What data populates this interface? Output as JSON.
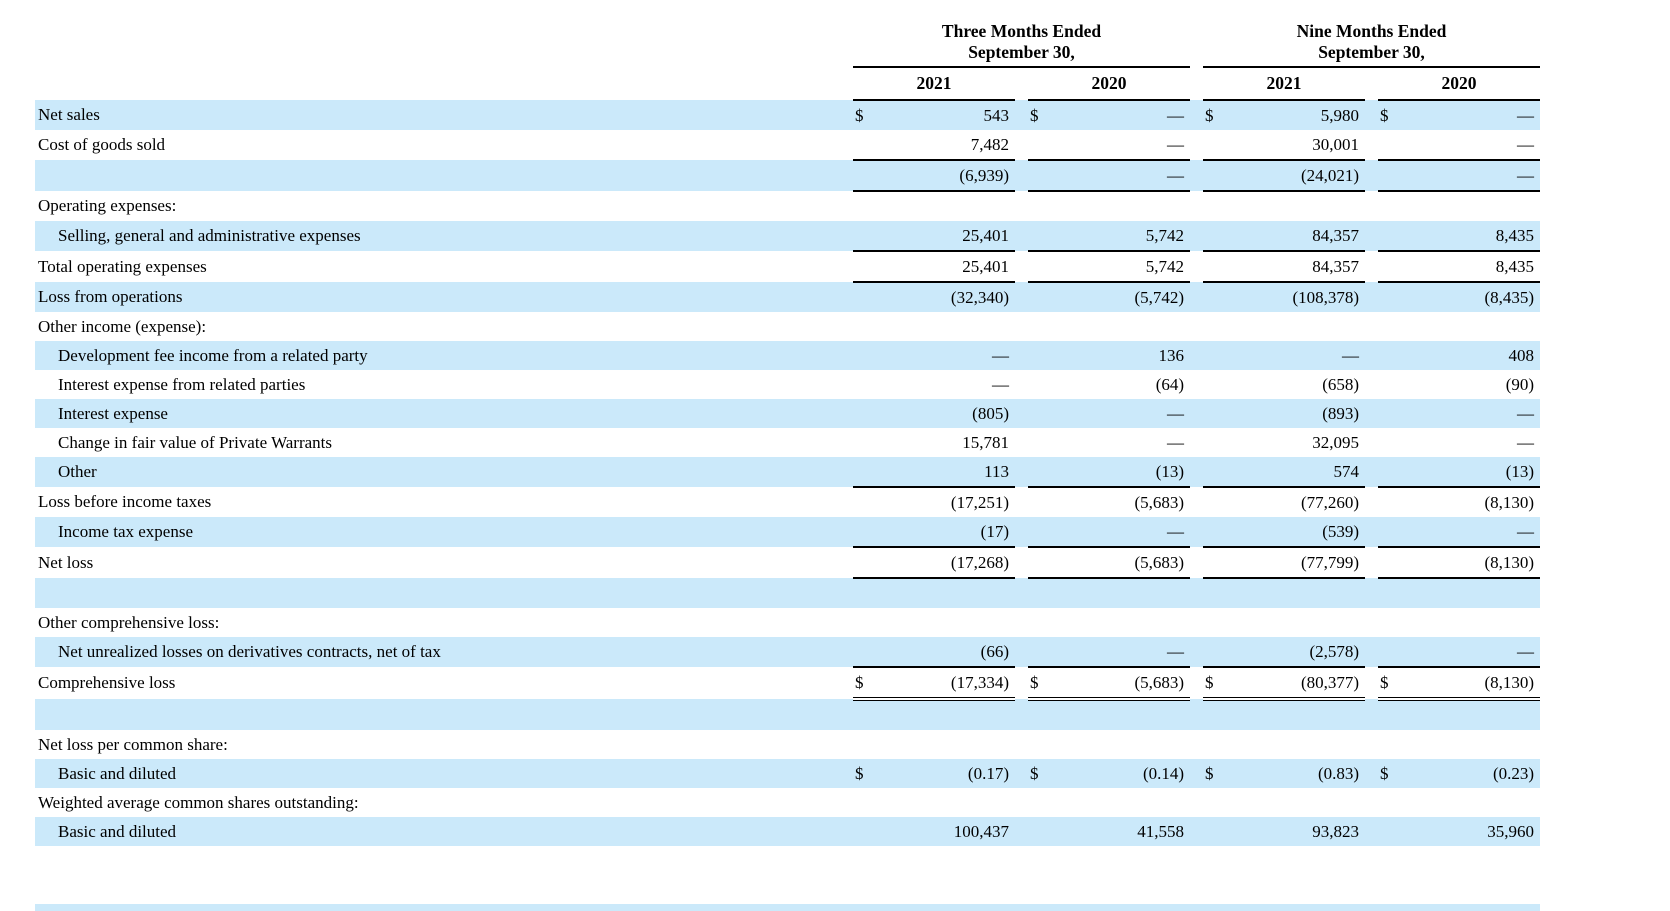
{
  "colors": {
    "row_highlight": "#cbe9fa",
    "rule": "#000000",
    "text": "#000000",
    "background": "#ffffff"
  },
  "table": {
    "currency_symbol": "$",
    "header": {
      "groups": [
        {
          "line1": "Three Months Ended",
          "line2": "September 30,"
        },
        {
          "line1": "Nine Months Ended",
          "line2": "September 30,"
        }
      ],
      "years": [
        "2021",
        "2020",
        "2021",
        "2020"
      ]
    },
    "rows": [
      {
        "label": "Net sales",
        "indent": 0,
        "blue": true,
        "dollar": true,
        "values": [
          "543",
          "—",
          "5,980",
          "—"
        ],
        "underline": null
      },
      {
        "label": "Cost of goods sold",
        "indent": 0,
        "blue": false,
        "dollar": false,
        "values": [
          "7,482",
          "—",
          "30,001",
          "—"
        ],
        "underline": "single"
      },
      {
        "label": "",
        "indent": 0,
        "blue": true,
        "dollar": false,
        "values": [
          "(6,939)",
          "—",
          "(24,021)",
          "—"
        ],
        "underline": "single"
      },
      {
        "label": "Operating expenses:",
        "indent": 0,
        "blue": false,
        "dollar": false,
        "values": null,
        "underline": null
      },
      {
        "label": "Selling, general and administrative expenses",
        "indent": 1,
        "blue": true,
        "dollar": false,
        "values": [
          "25,401",
          "5,742",
          "84,357",
          "8,435"
        ],
        "underline": "single"
      },
      {
        "label": "Total operating expenses",
        "indent": 0,
        "blue": false,
        "dollar": false,
        "values": [
          "25,401",
          "5,742",
          "84,357",
          "8,435"
        ],
        "underline": "single"
      },
      {
        "label": "Loss from operations",
        "indent": 0,
        "blue": true,
        "dollar": false,
        "values": [
          "(32,340)",
          "(5,742)",
          "(108,378)",
          "(8,435)"
        ],
        "underline": null
      },
      {
        "label": "Other income (expense):",
        "indent": 0,
        "blue": false,
        "dollar": false,
        "values": null,
        "underline": null
      },
      {
        "label": "Development fee income from a related party",
        "indent": 1,
        "blue": true,
        "dollar": false,
        "values": [
          "—",
          "136",
          "—",
          "408"
        ],
        "underline": null
      },
      {
        "label": "Interest expense from related parties",
        "indent": 1,
        "blue": false,
        "dollar": false,
        "values": [
          "—",
          "(64)",
          "(658)",
          "(90)"
        ],
        "underline": null
      },
      {
        "label": "Interest expense",
        "indent": 1,
        "blue": true,
        "dollar": false,
        "values": [
          "(805)",
          "—",
          "(893)",
          "—"
        ],
        "underline": null
      },
      {
        "label": "Change in fair value of Private Warrants",
        "indent": 1,
        "blue": false,
        "dollar": false,
        "values": [
          "15,781",
          "—",
          "32,095",
          "—"
        ],
        "underline": null
      },
      {
        "label": "Other",
        "indent": 1,
        "blue": true,
        "dollar": false,
        "values": [
          "113",
          "(13)",
          "574",
          "(13)"
        ],
        "underline": "single"
      },
      {
        "label": "Loss before income taxes",
        "indent": 0,
        "blue": false,
        "dollar": false,
        "values": [
          "(17,251)",
          "(5,683)",
          "(77,260)",
          "(8,130)"
        ],
        "underline": null
      },
      {
        "label": "Income tax expense",
        "indent": 1,
        "blue": true,
        "dollar": false,
        "values": [
          "(17)",
          "—",
          "(539)",
          "—"
        ],
        "underline": "single"
      },
      {
        "label": "Net loss",
        "indent": 0,
        "blue": false,
        "dollar": false,
        "values": [
          "(17,268)",
          "(5,683)",
          "(77,799)",
          "(8,130)"
        ],
        "underline": "single"
      },
      {
        "label": "",
        "indent": 0,
        "blue": true,
        "dollar": false,
        "values": null,
        "underline": null
      },
      {
        "label": "Other comprehensive loss:",
        "indent": 0,
        "blue": false,
        "dollar": false,
        "values": null,
        "underline": null
      },
      {
        "label": "Net unrealized losses on derivatives contracts, net of tax",
        "indent": 1,
        "blue": true,
        "dollar": false,
        "values": [
          "(66)",
          "—",
          "(2,578)",
          "—"
        ],
        "underline": "single"
      },
      {
        "label": "Comprehensive loss",
        "indent": 0,
        "blue": false,
        "dollar": true,
        "values": [
          "(17,334)",
          "(5,683)",
          "(80,377)",
          "(8,130)"
        ],
        "underline": "double"
      },
      {
        "label": "",
        "indent": 0,
        "blue": true,
        "dollar": false,
        "values": null,
        "underline": null
      },
      {
        "label": "Net loss per common share:",
        "indent": 0,
        "blue": false,
        "dollar": false,
        "values": null,
        "underline": null
      },
      {
        "label": "Basic and diluted",
        "indent": 1,
        "blue": true,
        "dollar": true,
        "values": [
          "(0.17)",
          "(0.14)",
          "(0.83)",
          "(0.23)"
        ],
        "underline": null
      },
      {
        "label": "Weighted average common shares outstanding:",
        "indent": 0,
        "blue": false,
        "dollar": false,
        "values": null,
        "underline": null
      },
      {
        "label": "Basic and diluted",
        "indent": 1,
        "blue": true,
        "dollar": false,
        "values": [
          "100,437",
          "41,558",
          "93,823",
          "35,960"
        ],
        "underline": null
      }
    ]
  }
}
